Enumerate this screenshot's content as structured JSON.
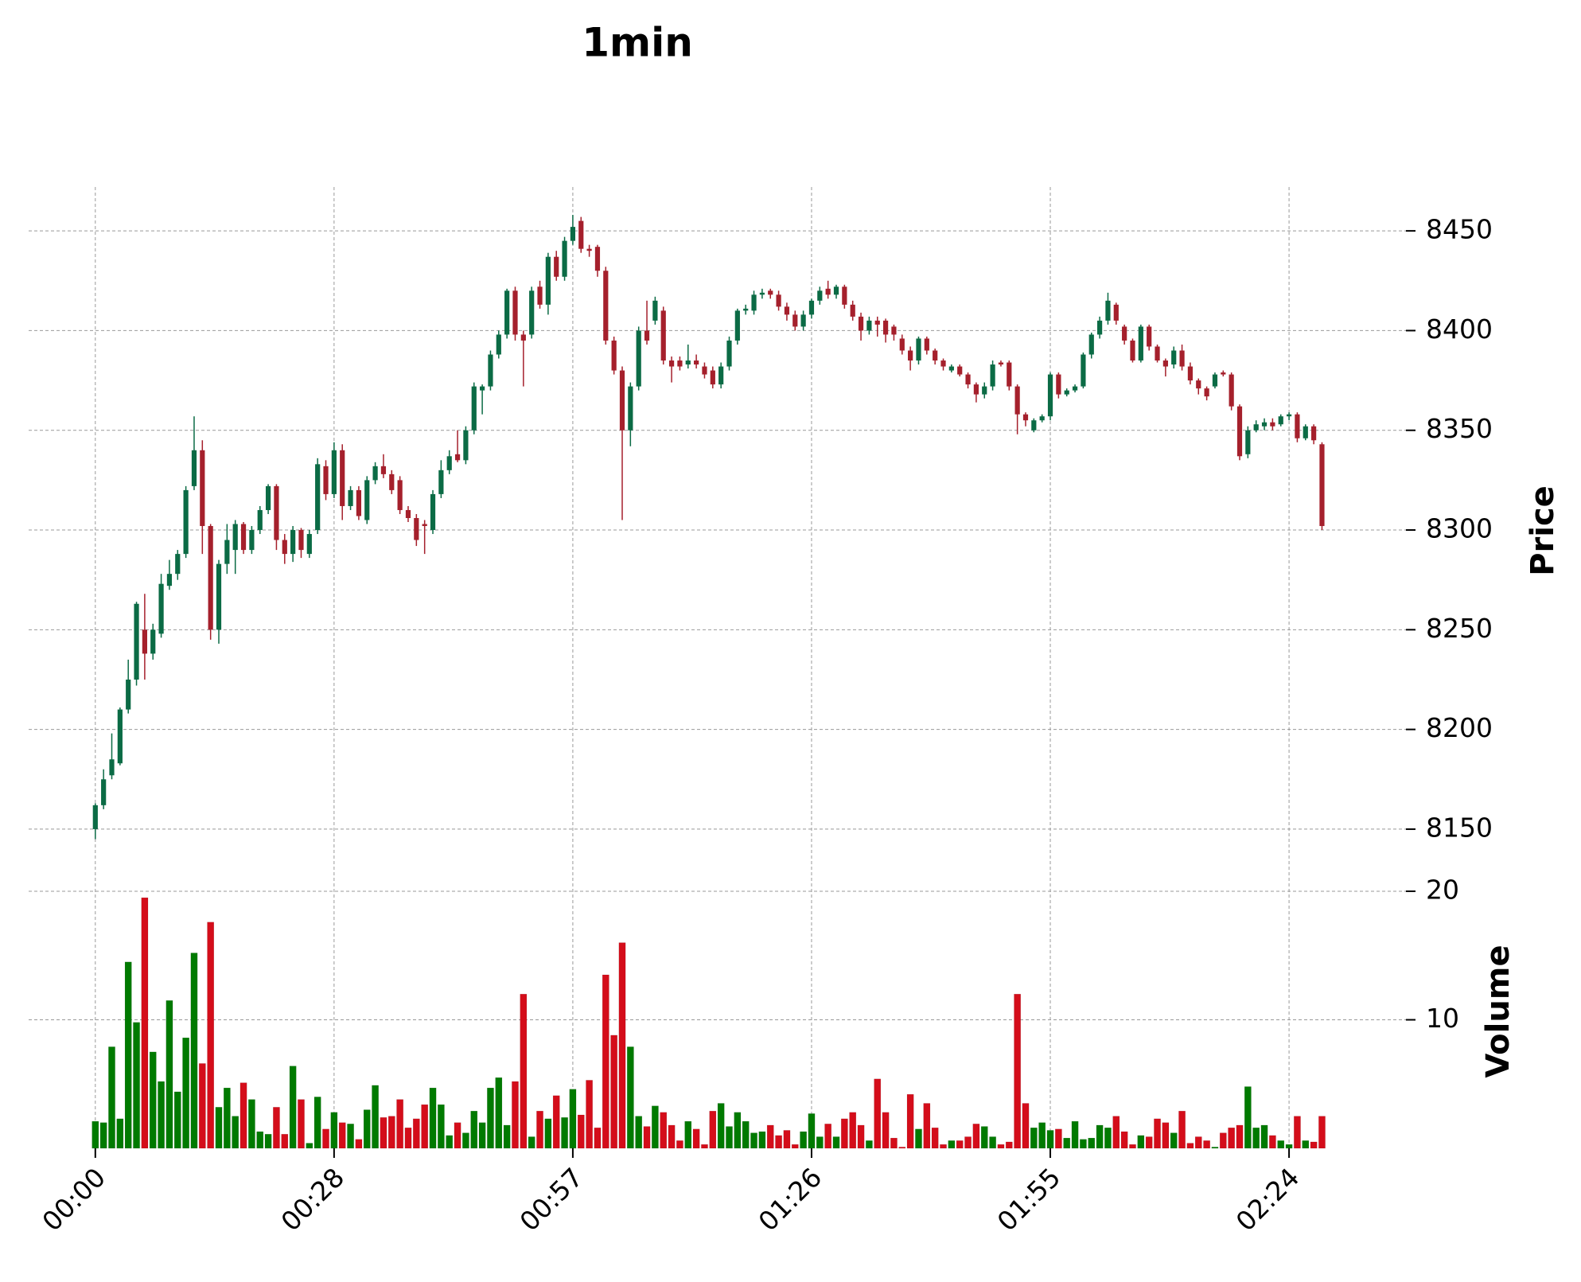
{
  "chart_data": {
    "type": "candlestick",
    "title": "1min",
    "ylabel": "Price",
    "volume_label": "Volume",
    "up_color": "#0b6b45",
    "down_color": "#a5202c",
    "volume_up_color": "#007a00",
    "volume_down_color": "#d40d1a",
    "grid": true,
    "ylim": [
      8138,
      8472
    ],
    "yticks": [
      8150,
      8200,
      8250,
      8300,
      8350,
      8400,
      8450
    ],
    "volume_ylim": [
      0,
      20
    ],
    "volume_yticks": [
      10,
      20
    ],
    "xticks": [
      {
        "value": 0,
        "label": "00:00"
      },
      {
        "value": 29,
        "label": "00:28"
      },
      {
        "value": 58,
        "label": "00:57"
      },
      {
        "value": 87,
        "label": "01:26"
      },
      {
        "value": 116,
        "label": "01:55"
      },
      {
        "value": 145,
        "label": "02:24"
      }
    ],
    "candles": [
      [
        8150,
        8163,
        8145,
        8162
      ],
      [
        8162,
        8180,
        8160,
        8175
      ],
      [
        8177,
        8198,
        8175,
        8185
      ],
      [
        8183,
        8211,
        8182,
        8210
      ],
      [
        8210,
        8235,
        8208,
        8225
      ],
      [
        8225,
        8264,
        8222,
        8263
      ],
      [
        8250,
        8268,
        8225,
        8238
      ],
      [
        8238,
        8253,
        8235,
        8250
      ],
      [
        8248,
        8278,
        8246,
        8273
      ],
      [
        8272,
        8285,
        8270,
        8278
      ],
      [
        8278,
        8290,
        8275,
        8288
      ],
      [
        8288,
        8322,
        8286,
        8320
      ],
      [
        8322,
        8357,
        8320,
        8340
      ],
      [
        8340,
        8345,
        8288,
        8302
      ],
      [
        8302,
        8303,
        8245,
        8250
      ],
      [
        8250,
        8285,
        8243,
        8283
      ],
      [
        8283,
        8303,
        8278,
        8295
      ],
      [
        8290,
        8305,
        8278,
        8303
      ],
      [
        8303,
        8304,
        8288,
        8290
      ],
      [
        8290,
        8302,
        8288,
        8300
      ],
      [
        8300,
        8312,
        8298,
        8310
      ],
      [
        8310,
        8323,
        8308,
        8322
      ],
      [
        8322,
        8323,
        8290,
        8295
      ],
      [
        8295,
        8298,
        8283,
        8288
      ],
      [
        8288,
        8302,
        8284,
        8300
      ],
      [
        8300,
        8301,
        8286,
        8290
      ],
      [
        8288,
        8300,
        8286,
        8298
      ],
      [
        8300,
        8336,
        8298,
        8333
      ],
      [
        8332,
        8335,
        8315,
        8318
      ],
      [
        8318,
        8344,
        8316,
        8340
      ],
      [
        8340,
        8343,
        8305,
        8312
      ],
      [
        8312,
        8322,
        8310,
        8320
      ],
      [
        8320,
        8322,
        8305,
        8307
      ],
      [
        8305,
        8327,
        8303,
        8325
      ],
      [
        8325,
        8334,
        8323,
        8332
      ],
      [
        8332,
        8338,
        8326,
        8328
      ],
      [
        8328,
        8330,
        8318,
        8320
      ],
      [
        8325,
        8327,
        8308,
        8310
      ],
      [
        8310,
        8312,
        8304,
        8306
      ],
      [
        8306,
        8308,
        8292,
        8295
      ],
      [
        8303,
        8305,
        8288,
        8302
      ],
      [
        8300,
        8320,
        8298,
        8318
      ],
      [
        8318,
        8335,
        8316,
        8330
      ],
      [
        8330,
        8340,
        8328,
        8337
      ],
      [
        8338,
        8350,
        8334,
        8335
      ],
      [
        8335,
        8352,
        8333,
        8350
      ],
      [
        8350,
        8374,
        8348,
        8372
      ],
      [
        8370,
        8373,
        8358,
        8372
      ],
      [
        8372,
        8390,
        8370,
        8388
      ],
      [
        8388,
        8400,
        8386,
        8398
      ],
      [
        8398,
        8421,
        8396,
        8420
      ],
      [
        8420,
        8422,
        8395,
        8398
      ],
      [
        8398,
        8400,
        8372,
        8395
      ],
      [
        8398,
        8422,
        8396,
        8420
      ],
      [
        8422,
        8425,
        8411,
        8413
      ],
      [
        8413,
        8439,
        8408,
        8437
      ],
      [
        8437,
        8440,
        8425,
        8427
      ],
      [
        8427,
        8447,
        8425,
        8445
      ],
      [
        8445,
        8458,
        8443,
        8452
      ],
      [
        8455,
        8457,
        8439,
        8441
      ],
      [
        8441,
        8443,
        8437,
        8440
      ],
      [
        8442,
        8443,
        8427,
        8430
      ],
      [
        8430,
        8432,
        8393,
        8395
      ],
      [
        8395,
        8397,
        8378,
        8380
      ],
      [
        8380,
        8382,
        8305,
        8350
      ],
      [
        8350,
        8374,
        8342,
        8372
      ],
      [
        8372,
        8402,
        8370,
        8400
      ],
      [
        8400,
        8415,
        8393,
        8395
      ],
      [
        8405,
        8417,
        8403,
        8415
      ],
      [
        8410,
        8412,
        8383,
        8385
      ],
      [
        8385,
        8387,
        8374,
        8382
      ],
      [
        8385,
        8387,
        8380,
        8382
      ],
      [
        8383,
        8393,
        8381,
        8385
      ],
      [
        8385,
        8388,
        8381,
        8383
      ],
      [
        8382,
        8384,
        8376,
        8378
      ],
      [
        8380,
        8382,
        8371,
        8373
      ],
      [
        8373,
        8384,
        8371,
        8382
      ],
      [
        8382,
        8397,
        8380,
        8395
      ],
      [
        8395,
        8411,
        8393,
        8410
      ],
      [
        8410,
        8413,
        8408,
        8411
      ],
      [
        8410,
        8420,
        8408,
        8418
      ],
      [
        8418,
        8421,
        8416,
        8419
      ],
      [
        8420,
        8421,
        8416,
        8418
      ],
      [
        8418,
        8420,
        8410,
        8412
      ],
      [
        8412,
        8414,
        8405,
        8408
      ],
      [
        8408,
        8410,
        8400,
        8402
      ],
      [
        8402,
        8410,
        8400,
        8408
      ],
      [
        8408,
        8416,
        8406,
        8415
      ],
      [
        8415,
        8422,
        8413,
        8420
      ],
      [
        8421,
        8425,
        8416,
        8418
      ],
      [
        8418,
        8423,
        8416,
        8422
      ],
      [
        8422,
        8423,
        8411,
        8413
      ],
      [
        8413,
        8415,
        8405,
        8407
      ],
      [
        8407,
        8409,
        8395,
        8400
      ],
      [
        8400,
        8407,
        8398,
        8405
      ],
      [
        8405,
        8407,
        8397,
        8403
      ],
      [
        8405,
        8406,
        8394,
        8398
      ],
      [
        8402,
        8403,
        8395,
        8398
      ],
      [
        8396,
        8398,
        8388,
        8390
      ],
      [
        8390,
        8392,
        8380,
        8385
      ],
      [
        8385,
        8397,
        8383,
        8396
      ],
      [
        8396,
        8397,
        8388,
        8390
      ],
      [
        8390,
        8391,
        8383,
        8385
      ],
      [
        8385,
        8386,
        8380,
        8382
      ],
      [
        8380,
        8383,
        8379,
        8382
      ],
      [
        8382,
        8383,
        8377,
        8378
      ],
      [
        8378,
        8379,
        8371,
        8373
      ],
      [
        8373,
        8374,
        8364,
        8368
      ],
      [
        8368,
        8374,
        8366,
        8372
      ],
      [
        8372,
        8385,
        8370,
        8383
      ],
      [
        8384,
        8385,
        8382,
        8383
      ],
      [
        8384,
        8385,
        8370,
        8372
      ],
      [
        8372,
        8373,
        8348,
        8358
      ],
      [
        8358,
        8359,
        8352,
        8355
      ],
      [
        8350,
        8356,
        8349,
        8355
      ],
      [
        8355,
        8358,
        8354,
        8357
      ],
      [
        8357,
        8379,
        8355,
        8378
      ],
      [
        8378,
        8379,
        8366,
        8368
      ],
      [
        8368,
        8371,
        8367,
        8370
      ],
      [
        8370,
        8373,
        8369,
        8372
      ],
      [
        8372,
        8389,
        8371,
        8388
      ],
      [
        8388,
        8399,
        8386,
        8398
      ],
      [
        8398,
        8407,
        8396,
        8405
      ],
      [
        8405,
        8419,
        8403,
        8415
      ],
      [
        8413,
        8414,
        8403,
        8405
      ],
      [
        8402,
        8403,
        8393,
        8395
      ],
      [
        8395,
        8396,
        8384,
        8385
      ],
      [
        8385,
        8403,
        8384,
        8402
      ],
      [
        8402,
        8403,
        8390,
        8392
      ],
      [
        8392,
        8393,
        8384,
        8385
      ],
      [
        8385,
        8386,
        8377,
        8382
      ],
      [
        8383,
        8392,
        8381,
        8390
      ],
      [
        8390,
        8393,
        8380,
        8382
      ],
      [
        8382,
        8384,
        8373,
        8375
      ],
      [
        8375,
        8376,
        8368,
        8371
      ],
      [
        8371,
        8372,
        8365,
        8367
      ],
      [
        8372,
        8379,
        8371,
        8378
      ],
      [
        8379,
        8380,
        8377,
        8378
      ],
      [
        8378,
        8379,
        8360,
        8362
      ],
      [
        8362,
        8363,
        8335,
        8337
      ],
      [
        8338,
        8352,
        8336,
        8350
      ],
      [
        8350,
        8355,
        8349,
        8353
      ],
      [
        8352,
        8356,
        8350,
        8354
      ],
      [
        8354,
        8356,
        8350,
        8352
      ],
      [
        8353,
        8358,
        8352,
        8357
      ],
      [
        8357,
        8359,
        8355,
        8358
      ],
      [
        8358,
        8359,
        8344,
        8346
      ],
      [
        8346,
        8353,
        8345,
        8352
      ],
      [
        8352,
        8353,
        8343,
        8345
      ],
      [
        8343,
        8344,
        8300,
        8302
      ]
    ],
    "volume": [
      2.1,
      2.0,
      7.9,
      2.3,
      14.5,
      9.8,
      19.5,
      7.5,
      5.2,
      11.5,
      4.4,
      8.6,
      15.2,
      6.6,
      17.6,
      3.2,
      4.7,
      2.5,
      5.1,
      3.8,
      1.3,
      1.1,
      3.2,
      1.1,
      6.4,
      3.8,
      0.4,
      4.0,
      1.5,
      2.8,
      2.0,
      1.9,
      0.7,
      3.0,
      4.9,
      2.4,
      2.5,
      3.8,
      1.6,
      2.3,
      3.4,
      4.7,
      3.4,
      1.0,
      2.0,
      1.2,
      2.9,
      2.0,
      4.7,
      5.5,
      1.8,
      5.2,
      12.0,
      0.9,
      2.9,
      2.3,
      4.1,
      2.4,
      4.6,
      2.6,
      5.3,
      1.6,
      13.5,
      8.8,
      16.0,
      7.9,
      2.5,
      1.7,
      3.3,
      2.8,
      1.8,
      0.6,
      2.1,
      1.5,
      0.3,
      2.9,
      3.5,
      1.7,
      2.8,
      2.1,
      1.2,
      1.3,
      1.8,
      1.0,
      1.4,
      0.3,
      1.3,
      2.7,
      0.9,
      1.9,
      0.9,
      2.3,
      2.8,
      1.8,
      0.6,
      5.4,
      2.8,
      0.8,
      0.1,
      4.2,
      1.5,
      3.5,
      1.6,
      0.3,
      0.6,
      0.6,
      0.9,
      1.9,
      1.7,
      0.9,
      0.3,
      0.5,
      12.0,
      3.5,
      1.6,
      2.0,
      1.4,
      1.5,
      0.8,
      2.1,
      0.7,
      0.8,
      1.8,
      1.6,
      2.5,
      1.3,
      0.3,
      1.0,
      0.9,
      2.3,
      2.0,
      1.2,
      2.9,
      0.4,
      0.9,
      0.6,
      0.1,
      1.2,
      1.6,
      1.8,
      4.8,
      1.6,
      1.8,
      1.0,
      0.6,
      0.3,
      2.5,
      0.6,
      0.5,
      2.5
    ]
  }
}
